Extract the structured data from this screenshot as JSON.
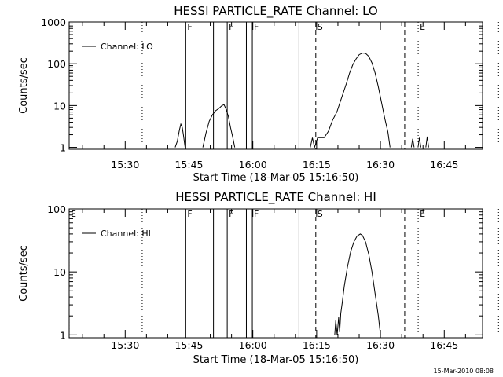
{
  "footer": {
    "timestamp": "15-Mar-2010 08:08"
  },
  "chart_data": [
    {
      "type": "line",
      "title": "HESSI PARTICLE_RATE Channel: LO",
      "xlabel": "Start Time (18-Mar-05 15:16:50)",
      "ylabel": "Counts/sec",
      "yscale": "log",
      "ylim": [
        0.9,
        1000
      ],
      "xlim_minutes_of_day": [
        916.83,
        1014
      ],
      "x_ticks": [
        "15:30",
        "15:45",
        "16:00",
        "16:15",
        "16:30",
        "16:45"
      ],
      "y_ticks": [
        "1",
        "10",
        "100",
        "1000"
      ],
      "legend": {
        "position": "top-left",
        "label": "Channel: LO"
      },
      "markers": [
        {
          "label": "F",
          "time": "15:44:14",
          "style": "solid"
        },
        {
          "label": "",
          "time": "15:50:45",
          "style": "solid"
        },
        {
          "label": "F",
          "time": "15:53:59",
          "style": "solid"
        },
        {
          "label": "",
          "time": "15:58:29",
          "style": "solid"
        },
        {
          "label": "F",
          "time": "15:59:53",
          "style": "solid"
        },
        {
          "label": "",
          "time": "16:10:51",
          "style": "solid"
        },
        {
          "label": "S",
          "time": "16:14:48",
          "style": "dashed"
        },
        {
          "label": "",
          "time": "16:35:42",
          "style": "dashed"
        },
        {
          "label": "E",
          "time": "16:38:52",
          "style": "dotted"
        },
        {
          "label": "",
          "time": "15:34:00",
          "style": "dotted"
        },
        {
          "label": "",
          "time": "16:57:45",
          "style": "dotted"
        }
      ],
      "series": [
        {
          "name": "Channel: LO",
          "segments": [
            [
              [
                "15:41:45",
                1
              ],
              [
                "15:42:15",
                1.4
              ],
              [
                "15:42:45",
                2.6
              ],
              [
                "15:43:05",
                3.6
              ],
              [
                "15:43:25",
                3.0
              ],
              [
                "15:43:45",
                1.8
              ],
              [
                "15:44:05",
                1
              ]
            ],
            [
              [
                "15:48:15",
                1
              ],
              [
                "15:49:00",
                2.2
              ],
              [
                "15:49:45",
                4.2
              ],
              [
                "15:50:30",
                6
              ],
              [
                "15:51:15",
                7.5
              ],
              [
                "15:52:00",
                8.5
              ],
              [
                "15:52:45",
                10
              ],
              [
                "15:53:15",
                10.5
              ],
              [
                "15:53:45",
                8
              ],
              [
                "15:54:15",
                5.5
              ],
              [
                "15:54:45",
                3
              ],
              [
                "15:55:15",
                1.8
              ],
              [
                "15:55:45",
                1
              ]
            ],
            [
              [
                "16:13:30",
                1
              ],
              [
                "16:14:00",
                1.7
              ],
              [
                "16:14:30",
                1
              ],
              [
                "16:15:15",
                1.7
              ],
              [
                "16:16:00",
                1.7
              ],
              [
                "16:16:45",
                1.7
              ],
              [
                "16:17:45",
                2.4
              ],
              [
                "16:18:45",
                4.5
              ],
              [
                "16:19:45",
                7
              ],
              [
                "16:20:30",
                12
              ],
              [
                "16:21:15",
                20
              ],
              [
                "16:22:00",
                34
              ],
              [
                "16:22:45",
                60
              ],
              [
                "16:23:30",
                95
              ],
              [
                "16:24:15",
                130
              ],
              [
                "16:25:00",
                165
              ],
              [
                "16:25:45",
                180
              ],
              [
                "16:26:30",
                178
              ],
              [
                "16:27:15",
                150
              ],
              [
                "16:28:00",
                105
              ],
              [
                "16:28:45",
                60
              ],
              [
                "16:29:30",
                28
              ],
              [
                "16:30:15",
                12
              ],
              [
                "16:31:00",
                5
              ],
              [
                "16:31:45",
                2.3
              ],
              [
                "16:32:15",
                1
              ]
            ],
            [
              [
                "16:37:15",
                1
              ],
              [
                "16:37:35",
                1.6
              ],
              [
                "16:37:55",
                1
              ]
            ],
            [
              [
                "16:38:50",
                1
              ],
              [
                "16:39:10",
                1.7
              ],
              [
                "16:39:30",
                1
              ]
            ],
            [
              [
                "16:40:40",
                1
              ],
              [
                "16:41:00",
                1.8
              ],
              [
                "16:41:20",
                1
              ]
            ]
          ]
        }
      ]
    },
    {
      "type": "line",
      "title": "HESSI PARTICLE_RATE Channel: HI",
      "xlabel": "Start Time (18-Mar-05 15:16:50)",
      "ylabel": "Counts/sec",
      "yscale": "log",
      "ylim": [
        0.9,
        100
      ],
      "xlim_minutes_of_day": [
        916.83,
        1014
      ],
      "x_ticks": [
        "15:30",
        "15:45",
        "16:00",
        "16:15",
        "16:30",
        "16:45"
      ],
      "y_ticks": [
        "1",
        "10",
        "100"
      ],
      "legend": {
        "position": "top-left",
        "label": "Channel: HI"
      },
      "markers": [
        {
          "label": "E",
          "time": "15:16:50",
          "style": "dotted"
        },
        {
          "label": "F",
          "time": "15:44:14",
          "style": "solid"
        },
        {
          "label": "",
          "time": "15:50:45",
          "style": "solid"
        },
        {
          "label": "F",
          "time": "15:53:59",
          "style": "solid"
        },
        {
          "label": "",
          "time": "15:58:29",
          "style": "solid"
        },
        {
          "label": "F",
          "time": "15:59:53",
          "style": "solid"
        },
        {
          "label": "",
          "time": "16:10:51",
          "style": "solid"
        },
        {
          "label": "S",
          "time": "16:14:48",
          "style": "dashed"
        },
        {
          "label": "",
          "time": "16:35:42",
          "style": "dashed"
        },
        {
          "label": "E",
          "time": "16:38:52",
          "style": "dotted"
        },
        {
          "label": "",
          "time": "15:34:00",
          "style": "dotted"
        },
        {
          "label": "",
          "time": "16:57:45",
          "style": "dotted"
        }
      ],
      "series": [
        {
          "name": "Channel: HI",
          "segments": [
            [
              [
                "16:19:15",
                1
              ],
              [
                "16:19:30",
                1.7
              ],
              [
                "16:19:50",
                1
              ],
              [
                "16:20:10",
                1.9
              ],
              [
                "16:20:25",
                1.1
              ],
              [
                "16:20:40",
                2.2
              ],
              [
                "16:21:00",
                3.2
              ],
              [
                "16:21:30",
                6
              ],
              [
                "16:22:15",
                12
              ],
              [
                "16:23:00",
                21
              ],
              [
                "16:23:45",
                30
              ],
              [
                "16:24:30",
                37
              ],
              [
                "16:25:15",
                40
              ],
              [
                "16:25:45",
                38
              ],
              [
                "16:26:30",
                30
              ],
              [
                "16:27:15",
                19
              ],
              [
                "16:28:00",
                10
              ],
              [
                "16:28:45",
                4.5
              ],
              [
                "16:29:30",
                2
              ],
              [
                "16:30:00",
                1
              ]
            ]
          ]
        }
      ]
    }
  ]
}
